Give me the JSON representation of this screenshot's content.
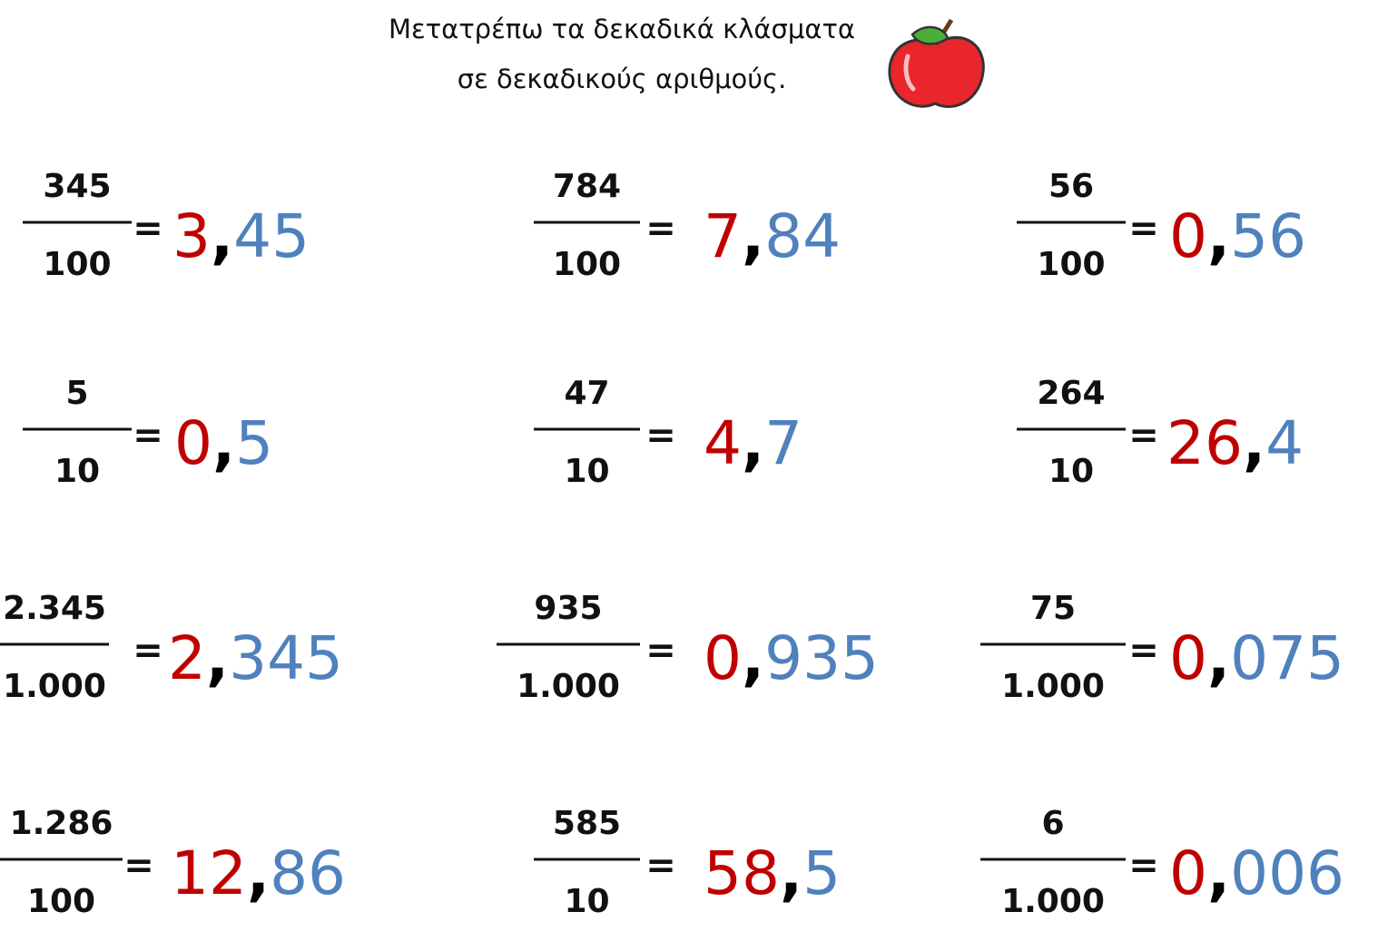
{
  "header": {
    "lines": [
      "Μετατρέπω τα δεκαδικά κλάσματα",
      "σε δεκαδικούς αριθμούς."
    ]
  },
  "symbols": {
    "equals": "=",
    "comma": ","
  },
  "problems": [
    {
      "numerator": "345",
      "denominator": "100",
      "integer": "3",
      "decimal": "45"
    },
    {
      "numerator": "784",
      "denominator": "100",
      "integer": "7",
      "decimal": "84"
    },
    {
      "numerator": "56",
      "denominator": "100",
      "integer": "0",
      "decimal": "56"
    },
    {
      "numerator": "5",
      "denominator": "10",
      "integer": "0",
      "decimal": "5"
    },
    {
      "numerator": "47",
      "denominator": "10",
      "integer": "4",
      "decimal": "7"
    },
    {
      "numerator": "264",
      "denominator": "10",
      "integer": "26",
      "decimal": "4"
    },
    {
      "numerator": "2.345",
      "denominator": "1.000",
      "integer": "2",
      "decimal": "345"
    },
    {
      "numerator": "935",
      "denominator": "1.000",
      "integer": "0",
      "decimal": "935"
    },
    {
      "numerator": "75",
      "denominator": "1.000",
      "integer": "0",
      "decimal": "075"
    },
    {
      "numerator": "1.286",
      "denominator": "100",
      "integer": "12",
      "decimal": "86"
    },
    {
      "numerator": "585",
      "denominator": "10",
      "integer": "58",
      "decimal": "5"
    },
    {
      "numerator": "6",
      "denominator": "1.000",
      "integer": "0",
      "decimal": "006"
    }
  ]
}
